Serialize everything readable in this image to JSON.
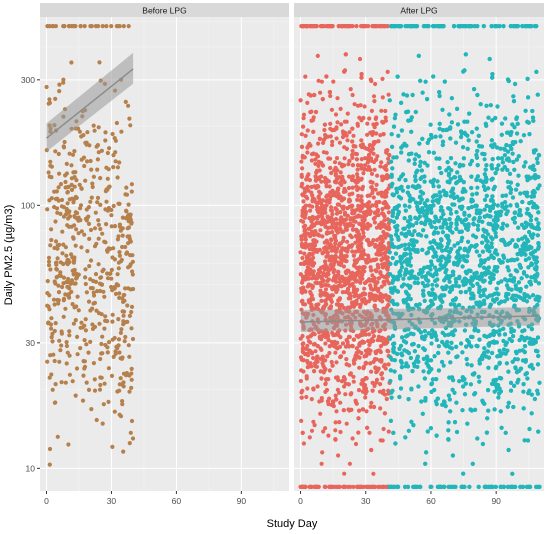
{
  "chart_data": {
    "type": "scatter",
    "xlabel": "Study Day",
    "ylabel": "Daily PM2.5 (µg/m3)",
    "y_scale": "log",
    "x_ticks": [
      0,
      30,
      60,
      90
    ],
    "y_ticks": [
      10,
      30,
      100,
      300
    ],
    "xlim": [
      -3,
      112
    ],
    "ylim": [
      8.2,
      520
    ],
    "grid": true,
    "legend": "none",
    "colors": {
      "red": "#E8655C",
      "red_dark": "#B5804B",
      "teal": "#22B5BA",
      "panel_bg": "#EBEBEB",
      "strip_bg": "#D9D9D9",
      "grid": "#FFFFFF",
      "axis_text": "#4D4D4D"
    },
    "panels": [
      {
        "strip": "Before LPG",
        "series": [
          {
            "color": "red_dark",
            "x_range": [
              0,
              40
            ],
            "y_range": [
              8.5,
              480
            ],
            "n": 620,
            "cap": 480
          }
        ],
        "trend": {
          "x": [
            0,
            40
          ],
          "y": [
            180,
            330
          ],
          "ci": [
            [
              160,
              205
            ],
            [
              290,
              380
            ]
          ]
        }
      },
      {
        "strip": "After LPG",
        "series": [
          {
            "color": "red",
            "x_range": [
              0,
              41
            ],
            "y_range": [
              8.5,
              480
            ],
            "n": 2300,
            "cap": 480,
            "floor": 8.5
          },
          {
            "color": "teal",
            "x_range": [
              41,
              110
            ],
            "y_range": [
              8.5,
              480
            ],
            "n": 3600,
            "cap": 480,
            "floor": 8.5
          }
        ],
        "trend": {
          "x": [
            0,
            110
          ],
          "y": [
            36,
            38
          ],
          "ci": [
            [
              33,
              40
            ],
            [
              35,
              41
            ]
          ]
        }
      }
    ]
  }
}
